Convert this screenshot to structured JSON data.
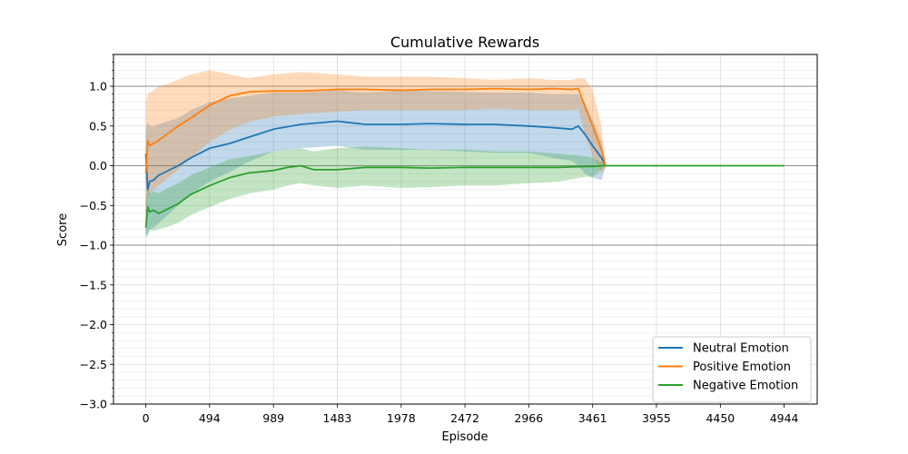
{
  "chart_data": {
    "type": "line",
    "title": "Cumulative Rewards",
    "xlabel": "Episode",
    "ylabel": "Score",
    "xlim": [
      -250,
      5200
    ],
    "ylim": [
      -3.0,
      1.4
    ],
    "xticks": [
      0,
      494,
      989,
      1483,
      1978,
      2472,
      2966,
      3461,
      3955,
      4450,
      4944
    ],
    "yticks": [
      -3.0,
      -2.5,
      -2.0,
      -1.5,
      -1.0,
      -0.5,
      0.0,
      0.5,
      1.0
    ],
    "ytick_labels": [
      "−3.0",
      "−2.5",
      "−2.0",
      "−1.5",
      "−1.0",
      "−0.5",
      "0.0",
      "0.5",
      "1.0"
    ],
    "reference_lines": [
      1.0,
      0.0,
      -1.0
    ],
    "grid": true,
    "minor_grid_y": true,
    "legend_position": "bottom-right",
    "series": [
      {
        "name": "Neutral Emotion",
        "color": "#1f77b4",
        "x": [
          0,
          15,
          30,
          60,
          100,
          150,
          250,
          350,
          494,
          650,
          800,
          989,
          1200,
          1483,
          1700,
          1978,
          2200,
          2472,
          2700,
          2966,
          3150,
          3300,
          3350,
          3400,
          3461,
          3530,
          3560
        ],
        "y": [
          0.15,
          -0.3,
          -0.2,
          -0.18,
          -0.12,
          -0.08,
          0.0,
          0.1,
          0.22,
          0.28,
          0.36,
          0.46,
          0.52,
          0.56,
          0.52,
          0.52,
          0.53,
          0.52,
          0.52,
          0.5,
          0.48,
          0.46,
          0.5,
          0.4,
          0.25,
          0.1,
          0.0
        ],
        "lower": [
          -0.85,
          -0.9,
          -0.8,
          -0.78,
          -0.72,
          -0.65,
          -0.5,
          -0.35,
          -0.2,
          -0.08,
          0.05,
          0.18,
          0.22,
          0.25,
          0.2,
          0.2,
          0.2,
          0.18,
          0.16,
          0.16,
          0.1,
          0.06,
          0.0,
          -0.1,
          -0.15,
          -0.18,
          -0.02
        ],
        "upper": [
          0.45,
          0.55,
          0.5,
          0.5,
          0.52,
          0.55,
          0.6,
          0.7,
          0.8,
          0.85,
          0.88,
          0.92,
          0.92,
          0.95,
          0.92,
          0.95,
          0.94,
          0.93,
          0.92,
          0.92,
          0.9,
          0.9,
          0.9,
          0.8,
          0.58,
          0.3,
          0.02
        ]
      },
      {
        "name": "Positive Emotion",
        "color": "#ff7f0e",
        "x": [
          0,
          15,
          30,
          60,
          100,
          150,
          250,
          350,
          494,
          650,
          800,
          989,
          1200,
          1483,
          1700,
          1978,
          2200,
          2472,
          2700,
          2966,
          3150,
          3300,
          3350,
          3400,
          3461,
          3530,
          3560
        ],
        "y": [
          -0.1,
          0.32,
          0.25,
          0.28,
          0.32,
          0.38,
          0.5,
          0.6,
          0.76,
          0.88,
          0.93,
          0.94,
          0.94,
          0.96,
          0.96,
          0.95,
          0.96,
          0.96,
          0.97,
          0.96,
          0.97,
          0.96,
          0.97,
          0.75,
          0.5,
          0.2,
          0.0
        ],
        "lower": [
          -0.9,
          -0.4,
          -0.35,
          -0.3,
          -0.25,
          -0.18,
          -0.05,
          0.1,
          0.3,
          0.45,
          0.55,
          0.62,
          0.65,
          0.68,
          0.7,
          0.7,
          0.7,
          0.7,
          0.72,
          0.7,
          0.7,
          0.7,
          0.72,
          0.4,
          0.12,
          -0.1,
          -0.02
        ],
        "upper": [
          0.8,
          0.9,
          0.92,
          0.95,
          1.0,
          1.02,
          1.08,
          1.15,
          1.2,
          1.15,
          1.1,
          1.15,
          1.18,
          1.15,
          1.12,
          1.12,
          1.12,
          1.1,
          1.08,
          1.1,
          1.08,
          1.08,
          1.1,
          1.1,
          0.95,
          0.5,
          0.02
        ]
      },
      {
        "name": "Negative Emotion",
        "color": "#2ca02c",
        "x": [
          0,
          15,
          30,
          60,
          100,
          150,
          250,
          350,
          494,
          650,
          800,
          989,
          1100,
          1200,
          1300,
          1483,
          1700,
          1978,
          2200,
          2472,
          2700,
          2966,
          3200,
          3400,
          3461,
          3530,
          3560
        ],
        "y": [
          -0.78,
          -0.52,
          -0.58,
          -0.56,
          -0.6,
          -0.56,
          -0.48,
          -0.36,
          -0.25,
          -0.15,
          -0.09,
          -0.06,
          -0.02,
          0.0,
          -0.05,
          -0.05,
          -0.02,
          -0.02,
          -0.03,
          -0.02,
          -0.02,
          -0.02,
          -0.02,
          -0.01,
          -0.01,
          0.0,
          0.0
        ],
        "lower": [
          -0.9,
          -0.85,
          -0.8,
          -0.82,
          -0.8,
          -0.78,
          -0.72,
          -0.62,
          -0.52,
          -0.42,
          -0.35,
          -0.3,
          -0.25,
          -0.22,
          -0.25,
          -0.28,
          -0.25,
          -0.28,
          -0.27,
          -0.25,
          -0.25,
          -0.22,
          -0.2,
          -0.14,
          -0.14,
          -0.05,
          0.0
        ],
        "upper": [
          -0.5,
          -0.28,
          -0.35,
          -0.32,
          -0.35,
          -0.3,
          -0.22,
          -0.12,
          -0.02,
          0.08,
          0.12,
          0.18,
          0.2,
          0.22,
          0.18,
          0.22,
          0.24,
          0.22,
          0.2,
          0.2,
          0.18,
          0.18,
          0.15,
          0.12,
          0.1,
          0.05,
          0.0
        ]
      }
    ],
    "flat_segment": {
      "x_start": 3560,
      "x_end": 4944,
      "y": 0.0
    }
  }
}
